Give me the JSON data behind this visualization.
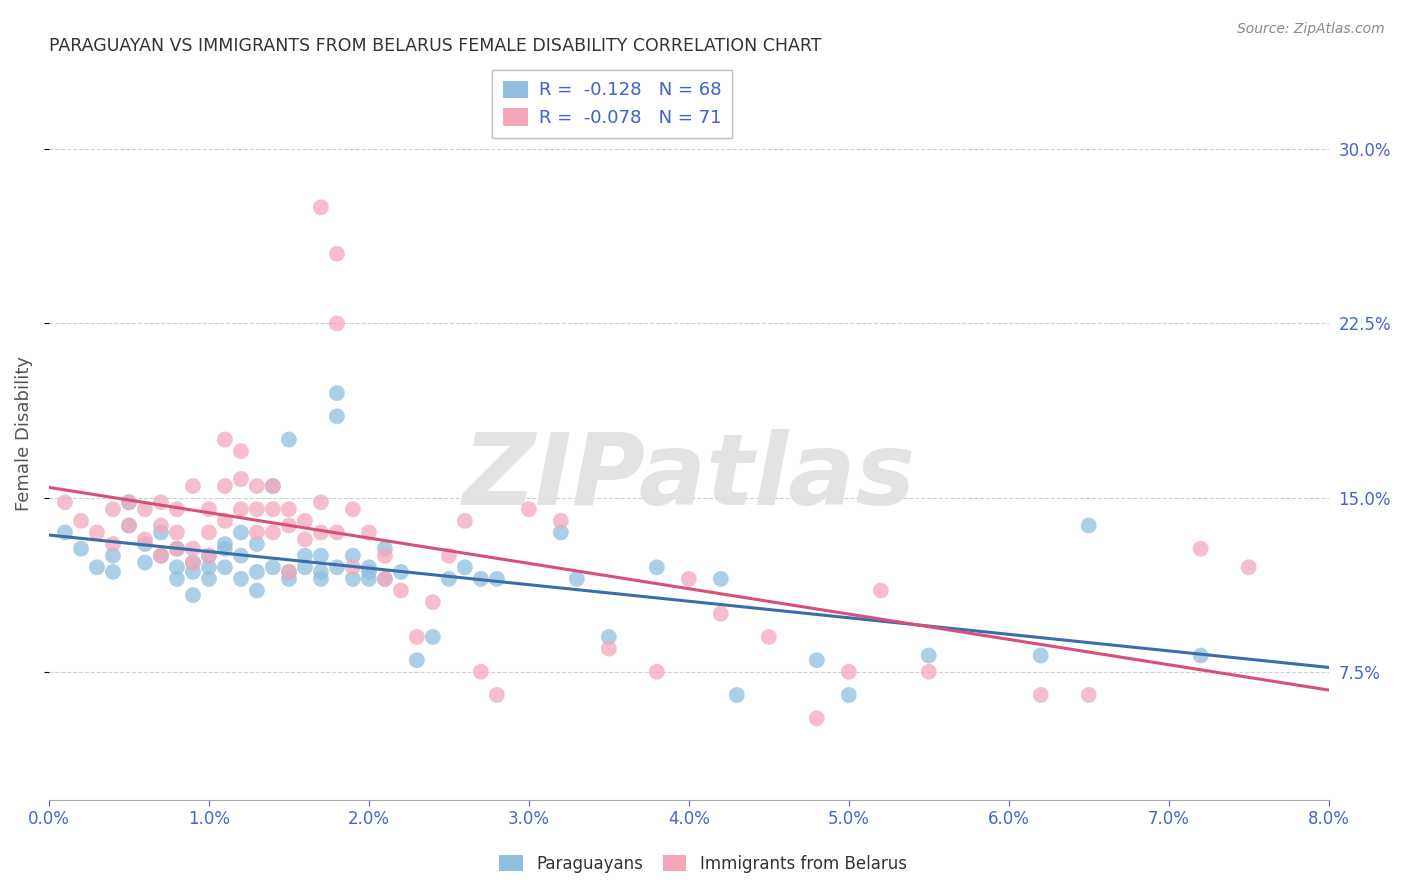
{
  "title": "PARAGUAYAN VS IMMIGRANTS FROM BELARUS FEMALE DISABILITY CORRELATION CHART",
  "source": "Source: ZipAtlas.com",
  "ylabel": "Female Disability",
  "ytick_labels": [
    "7.5%",
    "15.0%",
    "22.5%",
    "30.0%"
  ],
  "ytick_values": [
    0.075,
    0.15,
    0.225,
    0.3
  ],
  "xlim": [
    0.0,
    0.08
  ],
  "ylim": [
    0.02,
    0.335
  ],
  "legend_entry1": "R =  -0.128   N = 68",
  "legend_entry2": "R =  -0.078   N = 71",
  "legend_label1": "Paraguayans",
  "legend_label2": "Immigrants from Belarus",
  "blue_color": "#90bfe0",
  "pink_color": "#f4a7bb",
  "blue_line_color": "#3a6eaa",
  "pink_line_color": "#d94f7a",
  "blue_scatter": [
    [
      0.001,
      0.135
    ],
    [
      0.002,
      0.128
    ],
    [
      0.003,
      0.12
    ],
    [
      0.004,
      0.118
    ],
    [
      0.004,
      0.125
    ],
    [
      0.005,
      0.148
    ],
    [
      0.005,
      0.138
    ],
    [
      0.006,
      0.13
    ],
    [
      0.006,
      0.122
    ],
    [
      0.007,
      0.135
    ],
    [
      0.007,
      0.125
    ],
    [
      0.008,
      0.12
    ],
    [
      0.008,
      0.128
    ],
    [
      0.008,
      0.115
    ],
    [
      0.009,
      0.118
    ],
    [
      0.009,
      0.108
    ],
    [
      0.009,
      0.122
    ],
    [
      0.01,
      0.115
    ],
    [
      0.01,
      0.125
    ],
    [
      0.01,
      0.12
    ],
    [
      0.011,
      0.13
    ],
    [
      0.011,
      0.12
    ],
    [
      0.011,
      0.128
    ],
    [
      0.012,
      0.125
    ],
    [
      0.012,
      0.115
    ],
    [
      0.012,
      0.135
    ],
    [
      0.013,
      0.118
    ],
    [
      0.013,
      0.11
    ],
    [
      0.013,
      0.13
    ],
    [
      0.014,
      0.155
    ],
    [
      0.014,
      0.12
    ],
    [
      0.015,
      0.175
    ],
    [
      0.015,
      0.118
    ],
    [
      0.015,
      0.115
    ],
    [
      0.016,
      0.125
    ],
    [
      0.016,
      0.12
    ],
    [
      0.017,
      0.115
    ],
    [
      0.017,
      0.125
    ],
    [
      0.017,
      0.118
    ],
    [
      0.018,
      0.195
    ],
    [
      0.018,
      0.185
    ],
    [
      0.018,
      0.12
    ],
    [
      0.019,
      0.115
    ],
    [
      0.019,
      0.125
    ],
    [
      0.02,
      0.118
    ],
    [
      0.02,
      0.12
    ],
    [
      0.02,
      0.115
    ],
    [
      0.021,
      0.128
    ],
    [
      0.021,
      0.115
    ],
    [
      0.022,
      0.118
    ],
    [
      0.023,
      0.08
    ],
    [
      0.024,
      0.09
    ],
    [
      0.025,
      0.115
    ],
    [
      0.026,
      0.12
    ],
    [
      0.027,
      0.115
    ],
    [
      0.028,
      0.115
    ],
    [
      0.032,
      0.135
    ],
    [
      0.033,
      0.115
    ],
    [
      0.035,
      0.09
    ],
    [
      0.038,
      0.12
    ],
    [
      0.042,
      0.115
    ],
    [
      0.043,
      0.065
    ],
    [
      0.048,
      0.08
    ],
    [
      0.05,
      0.065
    ],
    [
      0.055,
      0.082
    ],
    [
      0.062,
      0.082
    ],
    [
      0.065,
      0.138
    ],
    [
      0.072,
      0.082
    ]
  ],
  "pink_scatter": [
    [
      0.001,
      0.148
    ],
    [
      0.002,
      0.14
    ],
    [
      0.003,
      0.135
    ],
    [
      0.004,
      0.145
    ],
    [
      0.004,
      0.13
    ],
    [
      0.005,
      0.148
    ],
    [
      0.005,
      0.138
    ],
    [
      0.006,
      0.145
    ],
    [
      0.006,
      0.132
    ],
    [
      0.007,
      0.148
    ],
    [
      0.007,
      0.138
    ],
    [
      0.007,
      0.125
    ],
    [
      0.008,
      0.145
    ],
    [
      0.008,
      0.135
    ],
    [
      0.008,
      0.128
    ],
    [
      0.009,
      0.155
    ],
    [
      0.009,
      0.128
    ],
    [
      0.009,
      0.122
    ],
    [
      0.01,
      0.145
    ],
    [
      0.01,
      0.135
    ],
    [
      0.01,
      0.125
    ],
    [
      0.011,
      0.175
    ],
    [
      0.011,
      0.155
    ],
    [
      0.011,
      0.14
    ],
    [
      0.012,
      0.17
    ],
    [
      0.012,
      0.158
    ],
    [
      0.012,
      0.145
    ],
    [
      0.013,
      0.155
    ],
    [
      0.013,
      0.145
    ],
    [
      0.013,
      0.135
    ],
    [
      0.014,
      0.145
    ],
    [
      0.014,
      0.155
    ],
    [
      0.014,
      0.135
    ],
    [
      0.015,
      0.145
    ],
    [
      0.015,
      0.138
    ],
    [
      0.015,
      0.118
    ],
    [
      0.016,
      0.14
    ],
    [
      0.016,
      0.132
    ],
    [
      0.017,
      0.275
    ],
    [
      0.017,
      0.148
    ],
    [
      0.017,
      0.135
    ],
    [
      0.018,
      0.255
    ],
    [
      0.018,
      0.225
    ],
    [
      0.018,
      0.135
    ],
    [
      0.019,
      0.145
    ],
    [
      0.019,
      0.12
    ],
    [
      0.02,
      0.135
    ],
    [
      0.021,
      0.125
    ],
    [
      0.021,
      0.115
    ],
    [
      0.022,
      0.11
    ],
    [
      0.023,
      0.09
    ],
    [
      0.024,
      0.105
    ],
    [
      0.025,
      0.125
    ],
    [
      0.026,
      0.14
    ],
    [
      0.027,
      0.075
    ],
    [
      0.028,
      0.065
    ],
    [
      0.03,
      0.145
    ],
    [
      0.032,
      0.14
    ],
    [
      0.035,
      0.085
    ],
    [
      0.038,
      0.075
    ],
    [
      0.04,
      0.115
    ],
    [
      0.042,
      0.1
    ],
    [
      0.045,
      0.09
    ],
    [
      0.048,
      0.055
    ],
    [
      0.05,
      0.075
    ],
    [
      0.052,
      0.11
    ],
    [
      0.055,
      0.075
    ],
    [
      0.062,
      0.065
    ],
    [
      0.065,
      0.065
    ],
    [
      0.072,
      0.128
    ],
    [
      0.075,
      0.12
    ]
  ],
  "background_color": "#ffffff",
  "grid_color": "#d0d0d0",
  "title_color": "#333333",
  "axis_label_color": "#4466cc",
  "watermark_color": "#e0e0e0",
  "watermark_alpha": 0.9
}
